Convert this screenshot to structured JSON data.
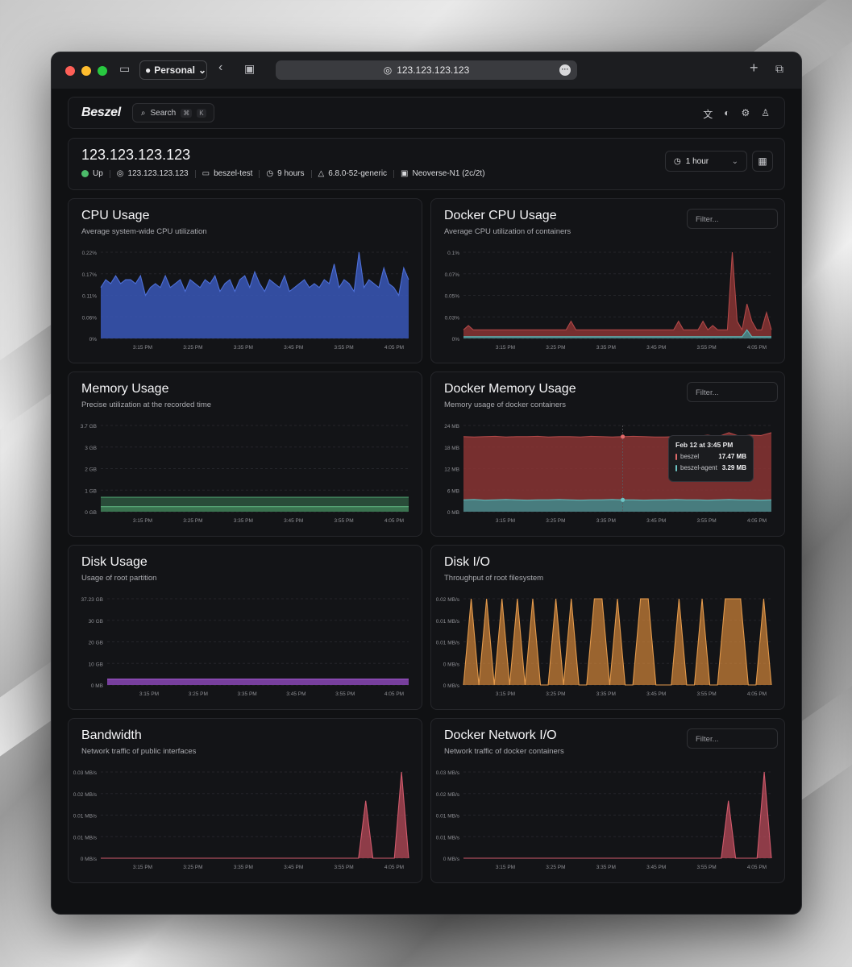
{
  "browser": {
    "profile_label": "Personal",
    "url": "123.123.123.123"
  },
  "app": {
    "logo": "Beszel",
    "search_label": "Search",
    "search_kbd": [
      "⌘",
      "K"
    ]
  },
  "system": {
    "title": "123.123.123.123",
    "status": "Up",
    "ip": "123.123.123.123",
    "hostname": "beszel-test",
    "uptime": "9 hours",
    "kernel": "6.8.0-52-generic",
    "cpu": "Neoverse-N1 (2c/2t)",
    "time_range": "1 hour"
  },
  "colors": {
    "cpu": "#3a57b8",
    "docker_red": "#8a3434",
    "docker_teal": "#3f8a8c",
    "memory": "#3d7a55",
    "disk": "#8a47b5",
    "diskio": "#d4863a",
    "net": "#b84a5a"
  },
  "cards": [
    {
      "title": "CPU Usage",
      "desc": "Average system-wide CPU utilization",
      "filter": null,
      "y_labels": [
        "0.22%",
        "0.17%",
        "0.11%",
        "0.06%",
        "0%"
      ],
      "x_labels": [
        "3:15 PM",
        "3:25 PM",
        "3:35 PM",
        "3:45 PM",
        "3:55 PM",
        "4:05 PM"
      ]
    },
    {
      "title": "Docker CPU Usage",
      "desc": "Average CPU utilization of containers",
      "filter": "Filter...",
      "y_labels": [
        "0.1%",
        "0.07%",
        "0.05%",
        "0.03%",
        "0%"
      ],
      "x_labels": [
        "3:15 PM",
        "3:25 PM",
        "3:35 PM",
        "3:45 PM",
        "3:55 PM",
        "4:05 PM"
      ]
    },
    {
      "title": "Memory Usage",
      "desc": "Precise utilization at the recorded time",
      "filter": null,
      "y_labels": [
        "3.7 GB",
        "3 GB",
        "2 GB",
        "1 GB",
        "0 GB"
      ],
      "x_labels": [
        "3:15 PM",
        "3:25 PM",
        "3:35 PM",
        "3:45 PM",
        "3:55 PM",
        "4:05 PM"
      ]
    },
    {
      "title": "Docker Memory Usage",
      "desc": "Memory usage of docker containers",
      "filter": "Filter...",
      "y_labels": [
        "24 MB",
        "18 MB",
        "12 MB",
        "6 MB",
        "0 MB"
      ],
      "x_labels": [
        "3:15 PM",
        "3:25 PM",
        "3:35 PM",
        "3:45 PM",
        "3:55 PM",
        "4:05 PM"
      ],
      "tooltip": {
        "title": "Feb 12 at 3:45 PM",
        "rows": [
          {
            "name": "beszel",
            "value": "17.47 MB"
          },
          {
            "name": "beszel-agent",
            "value": "3.29 MB"
          }
        ]
      }
    },
    {
      "title": "Disk Usage",
      "desc": "Usage of root partition",
      "filter": null,
      "y_labels": [
        "37.23 GB",
        "30 GB",
        "20 GB",
        "10 GB",
        "0 MB"
      ],
      "x_labels": [
        "3:15 PM",
        "3:25 PM",
        "3:35 PM",
        "3:45 PM",
        "3:55 PM",
        "4:05 PM"
      ]
    },
    {
      "title": "Disk I/O",
      "desc": "Throughput of root filesystem",
      "filter": null,
      "y_labels": [
        "0.02 MB/s",
        "0.01 MB/s",
        "0.01 MB/s",
        "0 MB/s",
        "0 MB/s"
      ],
      "x_labels": [
        "3:15 PM",
        "3:25 PM",
        "3:35 PM",
        "3:45 PM",
        "3:55 PM",
        "4:05 PM"
      ]
    },
    {
      "title": "Bandwidth",
      "desc": "Network traffic of public interfaces",
      "filter": null,
      "y_labels": [
        "0.03 MB/s",
        "0.02 MB/s",
        "0.01 MB/s",
        "0.01 MB/s",
        "0 MB/s"
      ],
      "x_labels": [
        "3:15 PM",
        "3:25 PM",
        "3:35 PM",
        "3:45 PM",
        "3:55 PM",
        "4:05 PM"
      ]
    },
    {
      "title": "Docker Network I/O",
      "desc": "Network traffic of docker containers",
      "filter": "Filter...",
      "y_labels": [
        "0.03 MB/s",
        "0.02 MB/s",
        "0.01 MB/s",
        "0.01 MB/s",
        "0 MB/s"
      ],
      "x_labels": [
        "3:15 PM",
        "3:25 PM",
        "3:35 PM",
        "3:45 PM",
        "3:55 PM",
        "4:05 PM"
      ]
    }
  ],
  "chart_data": [
    {
      "type": "area",
      "y_unit": "%",
      "ylim": [
        0,
        0.22
      ],
      "series": [
        {
          "values": [
            0.13,
            0.15,
            0.14,
            0.16,
            0.14,
            0.15,
            0.15,
            0.14,
            0.16,
            0.11,
            0.13,
            0.14,
            0.13,
            0.16,
            0.13,
            0.14,
            0.15,
            0.12,
            0.15,
            0.14,
            0.13,
            0.15,
            0.14,
            0.16,
            0.12,
            0.14,
            0.15,
            0.12,
            0.15,
            0.16,
            0.13,
            0.17,
            0.14,
            0.12,
            0.15,
            0.14,
            0.13,
            0.16,
            0.12,
            0.13,
            0.14,
            0.15,
            0.13,
            0.14,
            0.13,
            0.15,
            0.14,
            0.19,
            0.13,
            0.15,
            0.14,
            0.12,
            0.22,
            0.13,
            0.15,
            0.14,
            0.13,
            0.18,
            0.14,
            0.13,
            0.11,
            0.18,
            0.15
          ]
        }
      ]
    },
    {
      "type": "area",
      "y_unit": "%",
      "ylim": [
        0,
        0.1
      ],
      "series": [
        {
          "values": [
            0.01,
            0.015,
            0.01,
            0.01,
            0.01,
            0.01,
            0.01,
            0.01,
            0.01,
            0.01,
            0.01,
            0.01,
            0.01,
            0.01,
            0.01,
            0.01,
            0.01,
            0.01,
            0.01,
            0.01,
            0.01,
            0.01,
            0.02,
            0.01,
            0.01,
            0.01,
            0.01,
            0.01,
            0.01,
            0.01,
            0.01,
            0.01,
            0.01,
            0.01,
            0.01,
            0.01,
            0.01,
            0.01,
            0.01,
            0.01,
            0.01,
            0.01,
            0.01,
            0.01,
            0.02,
            0.01,
            0.01,
            0.01,
            0.01,
            0.02,
            0.01,
            0.015,
            0.01,
            0.01,
            0.01,
            0.1,
            0.02,
            0.01,
            0.04,
            0.02,
            0.01,
            0.01,
            0.03,
            0.01
          ]
        },
        {
          "values": [
            0.002,
            0.002,
            0.002,
            0.002,
            0.002,
            0.002,
            0.002,
            0.002,
            0.002,
            0.002,
            0.002,
            0.002,
            0.002,
            0.002,
            0.002,
            0.002,
            0.002,
            0.002,
            0.002,
            0.002,
            0.002,
            0.002,
            0.002,
            0.002,
            0.002,
            0.002,
            0.002,
            0.002,
            0.002,
            0.002,
            0.002,
            0.002,
            0.002,
            0.002,
            0.002,
            0.002,
            0.002,
            0.002,
            0.002,
            0.002,
            0.002,
            0.002,
            0.002,
            0.002,
            0.002,
            0.002,
            0.002,
            0.002,
            0.002,
            0.002,
            0.002,
            0.002,
            0.002,
            0.002,
            0.002,
            0.002,
            0.002,
            0.002,
            0.01,
            0.002,
            0.002,
            0.002,
            0.002,
            0.002
          ]
        }
      ]
    },
    {
      "type": "area",
      "y_unit": "GB",
      "ylim": [
        0,
        3.7
      ],
      "series": [
        {
          "values": [
            0.62,
            0.62,
            0.62,
            0.62,
            0.62,
            0.62,
            0.62,
            0.62,
            0.62,
            0.62
          ]
        },
        {
          "values": [
            0.22,
            0.22,
            0.22,
            0.22,
            0.22,
            0.22,
            0.22,
            0.22,
            0.22,
            0.22
          ]
        }
      ]
    },
    {
      "type": "area",
      "y_unit": "MB",
      "ylim": [
        0,
        24
      ],
      "series": [
        {
          "name": "beszel",
          "values": [
            20.9,
            20.8,
            20.9,
            21.0,
            20.8,
            20.9,
            20.9,
            21.0,
            20.8,
            20.9,
            20.9,
            20.8,
            21.0,
            20.9,
            20.8,
            20.9,
            21.0,
            20.9,
            20.8,
            20.8,
            20.9,
            20.8,
            21.0,
            21.3,
            20.9,
            22.0,
            21.0,
            21.3,
            21.2,
            22.0
          ]
        },
        {
          "name": "beszel-agent",
          "values": [
            3.3,
            3.4,
            3.2,
            3.3,
            3.4,
            3.3,
            3.2,
            3.3,
            3.3,
            3.4,
            3.3,
            3.2,
            3.3,
            3.3,
            3.4,
            3.3,
            3.3,
            3.2,
            3.3,
            3.3,
            3.4,
            3.3,
            3.3,
            3.2,
            3.3,
            3.4,
            3.3,
            3.3,
            3.2,
            3.3
          ]
        }
      ]
    },
    {
      "type": "area",
      "y_unit": "GB",
      "ylim": [
        0,
        37.23
      ],
      "series": [
        {
          "values": [
            2.5,
            2.5,
            2.5,
            2.5,
            2.5,
            2.5,
            2.5,
            2.5,
            2.5,
            2.5
          ]
        }
      ]
    },
    {
      "type": "area",
      "y_unit": "MB/s",
      "ylim": [
        0,
        0.02
      ],
      "series": [
        {
          "values": [
            0,
            0.02,
            0,
            0.02,
            0,
            0.02,
            0,
            0.02,
            0,
            0.02,
            0,
            0,
            0.02,
            0,
            0.02,
            0,
            0,
            0.02,
            0.02,
            0,
            0.02,
            0,
            0,
            0.02,
            0.02,
            0,
            0,
            0,
            0.02,
            0,
            0,
            0.02,
            0,
            0,
            0.02,
            0.02,
            0.02,
            0,
            0,
            0.02,
            0
          ]
        }
      ]
    },
    {
      "type": "area",
      "y_unit": "MB/s",
      "ylim": [
        0,
        0.03
      ],
      "series": [
        {
          "values": [
            0,
            0,
            0,
            0,
            0,
            0,
            0,
            0,
            0,
            0,
            0,
            0,
            0,
            0,
            0,
            0,
            0,
            0,
            0,
            0,
            0,
            0,
            0,
            0,
            0,
            0,
            0,
            0,
            0,
            0,
            0,
            0,
            0,
            0,
            0,
            0,
            0,
            0.02,
            0,
            0,
            0,
            0,
            0.03,
            0
          ]
        }
      ]
    },
    {
      "type": "area",
      "y_unit": "MB/s",
      "ylim": [
        0,
        0.03
      ],
      "series": [
        {
          "values": [
            0,
            0,
            0,
            0,
            0,
            0,
            0,
            0,
            0,
            0,
            0,
            0,
            0,
            0,
            0,
            0,
            0,
            0,
            0,
            0,
            0,
            0,
            0,
            0,
            0,
            0,
            0,
            0,
            0,
            0,
            0,
            0,
            0,
            0,
            0,
            0,
            0,
            0.02,
            0,
            0,
            0,
            0,
            0.03,
            0
          ]
        }
      ]
    }
  ]
}
